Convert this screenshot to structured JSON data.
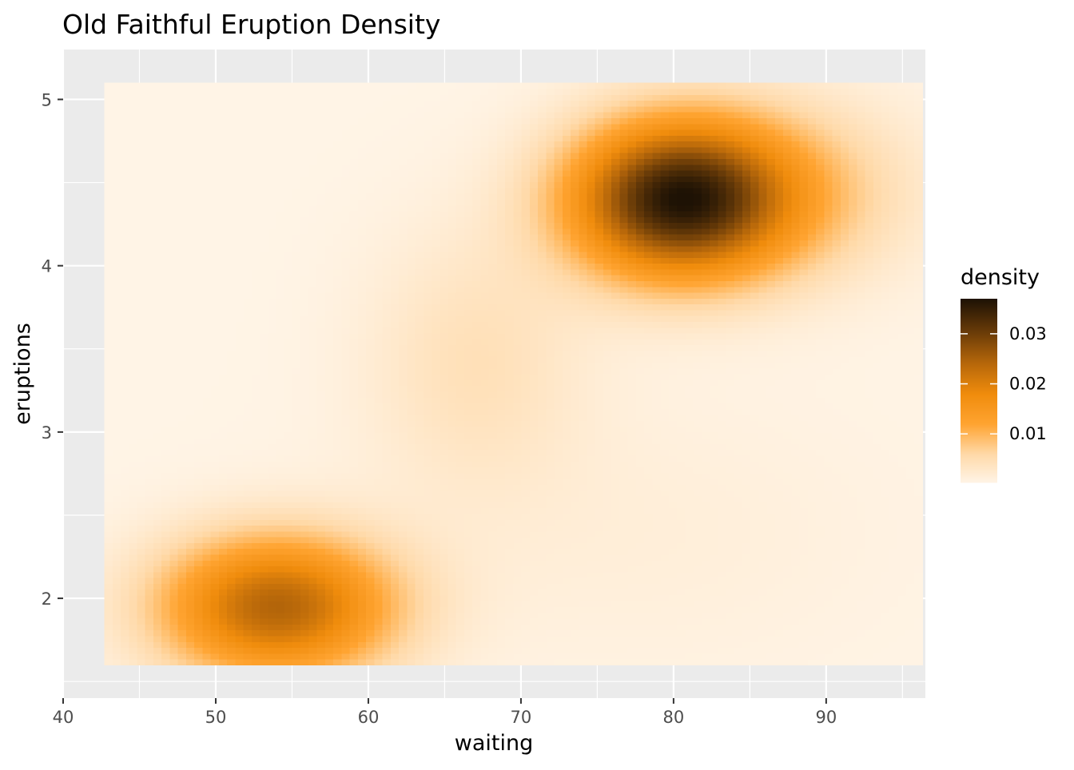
{
  "chart_data": {
    "type": "heatmap",
    "title": "Old Faithful Eruption Density",
    "xlabel": "waiting",
    "ylabel": "eruptions",
    "xlim": [
      40,
      96.5
    ],
    "ylim": [
      1.4,
      5.3
    ],
    "data_extent": {
      "x": [
        42.7,
        96.3
      ],
      "y": [
        1.6,
        5.1
      ]
    },
    "x_ticks": [
      40,
      50,
      60,
      70,
      80,
      90
    ],
    "x_tick_labels": [
      "40",
      "50",
      "60",
      "70",
      "80",
      "90"
    ],
    "y_ticks": [
      2,
      3,
      4,
      5
    ],
    "y_tick_labels": [
      "2",
      "3",
      "4",
      "5"
    ],
    "grid": true,
    "panel_background": "#EBEBEB",
    "grid_color": "#FFFFFF",
    "legend": {
      "title": "density",
      "position": "right",
      "breaks": [
        0.01,
        0.02,
        0.03
      ],
      "labels": [
        "0.01",
        "0.02",
        "0.03"
      ],
      "range": [
        0.0003,
        0.037
      ]
    },
    "color_scale": [
      {
        "value": 0.0003,
        "color": "#FFF4E6"
      },
      {
        "value": 0.006,
        "color": "#FFD9A8"
      },
      {
        "value": 0.012,
        "color": "#FFA431"
      },
      {
        "value": 0.018,
        "color": "#F08C0C"
      },
      {
        "value": 0.024,
        "color": "#B8680A"
      },
      {
        "value": 0.03,
        "color": "#6E3E08"
      },
      {
        "value": 0.037,
        "color": "#1E1205"
      }
    ],
    "density_peaks": [
      {
        "waiting": 80.2,
        "eruptions": 4.4,
        "density": 0.037
      },
      {
        "waiting": 53.5,
        "eruptions": 1.95,
        "density": 0.025
      }
    ]
  }
}
